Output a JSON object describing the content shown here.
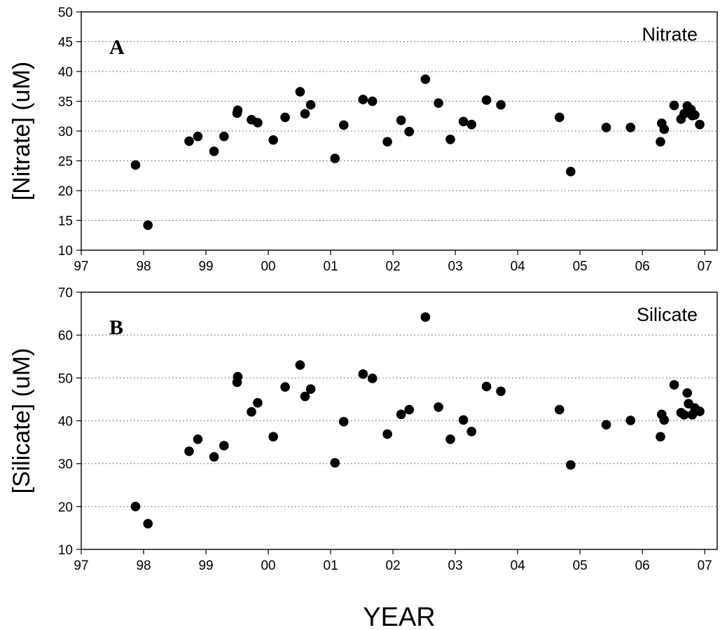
{
  "chart_data": [
    {
      "type": "scatter",
      "panel_letter": "A",
      "series_label": "Nitrate",
      "xlabel": "",
      "ylabel": "[Nitrate] (uM)",
      "xlim": [
        1997,
        2007.2
      ],
      "ylim": [
        10,
        50
      ],
      "yticks": [
        10,
        15,
        20,
        25,
        30,
        35,
        40,
        45,
        50
      ],
      "grid": "horizontal dotted",
      "xticks": [
        1997,
        1998,
        1999,
        2000,
        2001,
        2002,
        2003,
        2004,
        2005,
        2006,
        2007
      ],
      "xtick_labels": [
        "97",
        "98",
        "99",
        "00",
        "01",
        "02",
        "03",
        "04",
        "05",
        "06",
        "07"
      ],
      "points": [
        [
          1997.87,
          24.3
        ],
        [
          1998.07,
          14.2
        ],
        [
          1998.73,
          28.3
        ],
        [
          1998.87,
          29.1
        ],
        [
          1999.13,
          26.6
        ],
        [
          1999.29,
          29.1
        ],
        [
          1999.5,
          33.0
        ],
        [
          1999.51,
          33.5
        ],
        [
          1999.73,
          31.9
        ],
        [
          1999.83,
          31.4
        ],
        [
          2000.08,
          28.5
        ],
        [
          2000.27,
          32.3
        ],
        [
          2000.51,
          36.6
        ],
        [
          2000.59,
          32.9
        ],
        [
          2000.68,
          34.4
        ],
        [
          2001.07,
          25.4
        ],
        [
          2001.21,
          31.0
        ],
        [
          2001.52,
          35.3
        ],
        [
          2001.67,
          35.0
        ],
        [
          2001.91,
          28.2
        ],
        [
          2002.13,
          31.8
        ],
        [
          2002.26,
          29.9
        ],
        [
          2002.52,
          38.7
        ],
        [
          2002.73,
          34.7
        ],
        [
          2002.92,
          28.6
        ],
        [
          2003.13,
          31.6
        ],
        [
          2003.26,
          31.1
        ],
        [
          2003.5,
          35.2
        ],
        [
          2003.73,
          34.4
        ],
        [
          2004.67,
          32.3
        ],
        [
          2004.85,
          23.2
        ],
        [
          2005.42,
          30.6
        ],
        [
          2005.81,
          30.6
        ],
        [
          2006.29,
          28.2
        ],
        [
          2006.31,
          31.3
        ],
        [
          2006.35,
          30.3
        ],
        [
          2006.51,
          34.3
        ],
        [
          2006.62,
          32.0
        ],
        [
          2006.67,
          32.9
        ],
        [
          2006.72,
          34.2
        ],
        [
          2006.78,
          33.6
        ],
        [
          2006.8,
          32.6
        ],
        [
          2006.84,
          32.7
        ],
        [
          2006.92,
          31.1
        ]
      ]
    },
    {
      "type": "scatter",
      "panel_letter": "B",
      "series_label": "Silicate",
      "xlabel": "YEAR",
      "ylabel": "[Silicate] (uM)",
      "xlim": [
        1997,
        2007.2
      ],
      "ylim": [
        10,
        70
      ],
      "yticks": [
        10,
        20,
        30,
        40,
        50,
        60,
        70
      ],
      "grid": "horizontal dotted",
      "xticks": [
        1997,
        1998,
        1999,
        2000,
        2001,
        2002,
        2003,
        2004,
        2005,
        2006,
        2007
      ],
      "xtick_labels": [
        "97",
        "98",
        "99",
        "00",
        "01",
        "02",
        "03",
        "04",
        "05",
        "06",
        "07"
      ],
      "points": [
        [
          1997.87,
          20.0
        ],
        [
          1998.07,
          16.0
        ],
        [
          1998.73,
          32.9
        ],
        [
          1998.87,
          35.7
        ],
        [
          1999.13,
          31.6
        ],
        [
          1999.29,
          34.2
        ],
        [
          1999.5,
          49.0
        ],
        [
          1999.51,
          50.3
        ],
        [
          1999.73,
          42.1
        ],
        [
          1999.83,
          44.2
        ],
        [
          2000.08,
          36.3
        ],
        [
          2000.27,
          47.9
        ],
        [
          2000.51,
          53.0
        ],
        [
          2000.59,
          45.7
        ],
        [
          2000.68,
          47.4
        ],
        [
          2001.07,
          30.2
        ],
        [
          2001.21,
          39.8
        ],
        [
          2001.52,
          50.9
        ],
        [
          2001.67,
          49.9
        ],
        [
          2001.91,
          36.9
        ],
        [
          2002.13,
          41.5
        ],
        [
          2002.26,
          42.6
        ],
        [
          2002.52,
          64.2
        ],
        [
          2002.73,
          43.2
        ],
        [
          2002.92,
          35.7
        ],
        [
          2003.13,
          40.2
        ],
        [
          2003.26,
          37.5
        ],
        [
          2003.5,
          48.0
        ],
        [
          2003.73,
          46.9
        ],
        [
          2004.67,
          42.6
        ],
        [
          2004.85,
          29.7
        ],
        [
          2005.42,
          39.1
        ],
        [
          2005.81,
          40.1
        ],
        [
          2006.29,
          36.3
        ],
        [
          2006.31,
          41.5
        ],
        [
          2006.35,
          40.2
        ],
        [
          2006.51,
          48.4
        ],
        [
          2006.62,
          41.9
        ],
        [
          2006.67,
          41.4
        ],
        [
          2006.72,
          46.5
        ],
        [
          2006.74,
          44.0
        ],
        [
          2006.8,
          41.4
        ],
        [
          2006.84,
          43.0
        ],
        [
          2006.92,
          42.2
        ]
      ]
    }
  ]
}
